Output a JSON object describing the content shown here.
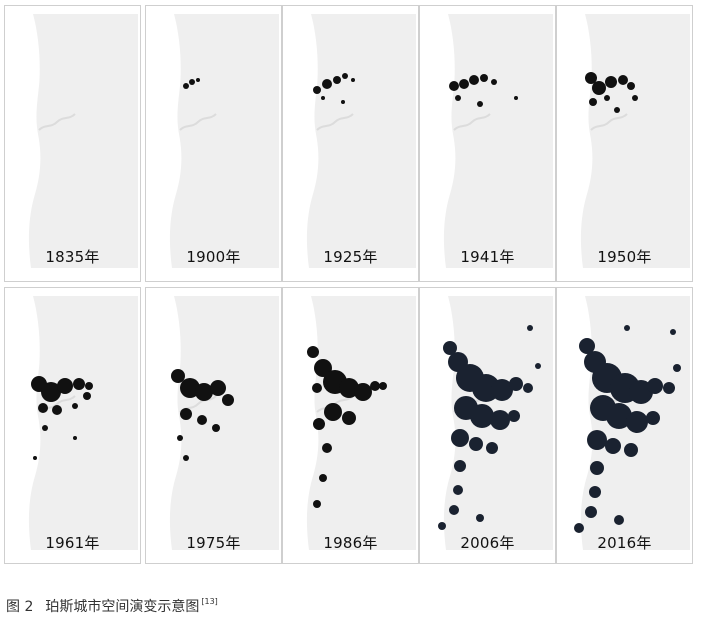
{
  "figure": {
    "panels": [
      {
        "year": "1835年",
        "level": 0
      },
      {
        "year": "1900年",
        "level": 1
      },
      {
        "year": "1925年",
        "level": 2
      },
      {
        "year": "1941年",
        "level": 3
      },
      {
        "year": "1950年",
        "level": 4
      },
      {
        "year": "1961年",
        "level": 5
      },
      {
        "year": "1975年",
        "level": 6
      },
      {
        "year": "1986年",
        "level": 7
      },
      {
        "year": "2006年",
        "level": 8
      },
      {
        "year": "2016年",
        "level": 9
      }
    ],
    "caption": {
      "number": "图 2",
      "title": "珀斯城市空间演变示意图",
      "ref": "[13]"
    }
  }
}
